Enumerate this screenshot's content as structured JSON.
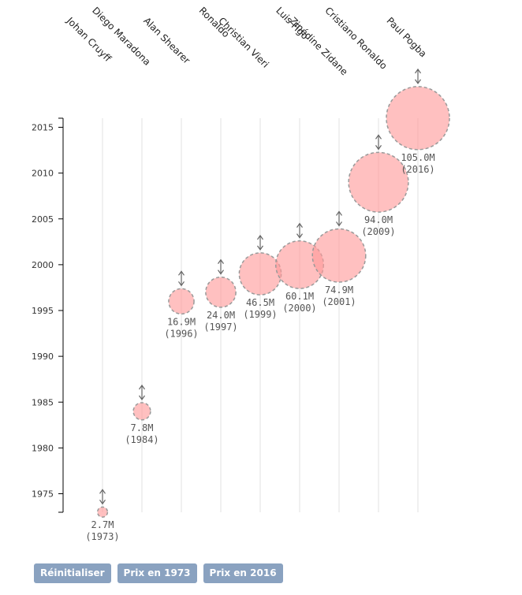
{
  "chart_data": {
    "type": "scatter",
    "title": "",
    "xlabel": "",
    "ylabel": "",
    "ylim": [
      1973,
      2018
    ],
    "yticks": [
      1975,
      1980,
      1985,
      1990,
      1995,
      2000,
      2005,
      2010,
      2015
    ],
    "bubble_color": "#ff9a9a",
    "players": [
      {
        "name": "Johan Cruyff",
        "year": 1973,
        "value": 2.7,
        "value_label": "2.7M",
        "year_label": "(1973)"
      },
      {
        "name": "Diego Maradona",
        "year": 1984,
        "value": 7.8,
        "value_label": "7.8M",
        "year_label": "(1984)"
      },
      {
        "name": "Alan Shearer",
        "year": 1996,
        "value": 16.9,
        "value_label": "16.9M",
        "year_label": "(1996)"
      },
      {
        "name": "Ronaldo",
        "year": 1997,
        "value": 24.0,
        "value_label": "24.0M",
        "year_label": "(1997)"
      },
      {
        "name": "Christian Vieri",
        "year": 1999,
        "value": 46.5,
        "value_label": "46.5M",
        "year_label": "(1999)"
      },
      {
        "name": "Luis Figo",
        "year": 2000,
        "value": 60.1,
        "value_label": "60.1M",
        "year_label": "(2000)"
      },
      {
        "name": "Zinédine Zidane",
        "year": 2001,
        "value": 74.9,
        "value_label": "74.9M",
        "year_label": "(2001)"
      },
      {
        "name": "Cristiano Ronaldo",
        "year": 2009,
        "value": 94.0,
        "value_label": "94.0M",
        "year_label": "(2009)"
      },
      {
        "name": "Paul Pogba",
        "year": 2016,
        "value": 105.0,
        "value_label": "105.0M",
        "year_label": "(2016)"
      }
    ]
  },
  "buttons": {
    "reset": "Réinitialiser",
    "price_1973": "Prix en 1973",
    "price_2016": "Prix en 2016"
  }
}
